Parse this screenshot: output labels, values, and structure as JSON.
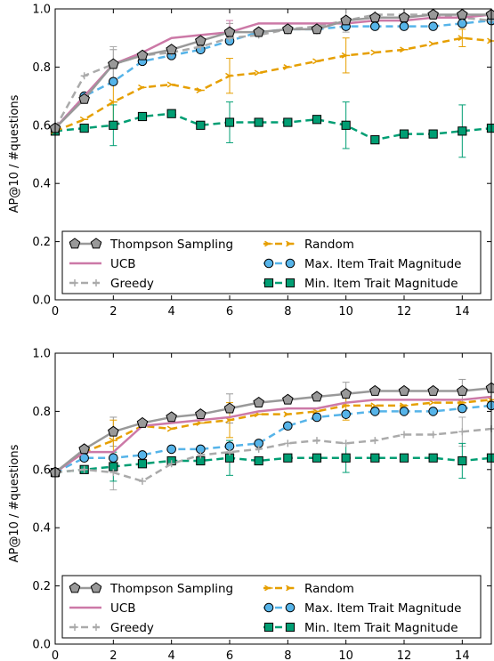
{
  "colors": {
    "thompson": "#999999",
    "ucb": "#cc79a7",
    "greedy": "#aaaaaa",
    "random": "#e69f00",
    "max": "#56b4e9",
    "min": "#009e73"
  },
  "chart_data": [
    {
      "type": "line",
      "xlabel": "",
      "ylabel": "AP@10  /  #questions",
      "xlim": [
        0,
        15
      ],
      "ylim": [
        0.0,
        1.0
      ],
      "xticks": [
        "0",
        "2",
        "4",
        "6",
        "8",
        "10",
        "12",
        "14"
      ],
      "yticks": [
        "0.0",
        "0.2",
        "0.4",
        "0.6",
        "0.8",
        "1.0"
      ],
      "legend_position": "lower-center",
      "x": [
        0,
        1,
        2,
        3,
        4,
        5,
        6,
        7,
        8,
        9,
        10,
        11,
        12,
        13,
        14,
        15
      ],
      "series": [
        {
          "name": "Thompson Sampling",
          "key": "thompson",
          "marker": "pentagon",
          "dash": "solid",
          "values": [
            0.59,
            0.69,
            0.81,
            0.84,
            0.86,
            0.89,
            0.92,
            0.92,
            0.93,
            0.93,
            0.96,
            0.97,
            0.97,
            0.98,
            0.98,
            0.98
          ]
        },
        {
          "name": "UCB",
          "key": "ucb",
          "marker": "none",
          "dash": "solid",
          "values": [
            0.59,
            0.7,
            0.81,
            0.85,
            0.9,
            0.91,
            0.92,
            0.95,
            0.95,
            0.95,
            0.95,
            0.96,
            0.96,
            0.97,
            0.97,
            0.98
          ]
        },
        {
          "name": "Greedy",
          "key": "greedy",
          "marker": "plus",
          "dash": "dash",
          "values": [
            0.59,
            0.77,
            0.81,
            0.84,
            0.85,
            0.87,
            0.9,
            0.91,
            0.93,
            0.94,
            0.96,
            0.98,
            0.98,
            0.98,
            0.97,
            0.96
          ]
        },
        {
          "name": "Random",
          "key": "random",
          "marker": "tri",
          "dash": "dash",
          "values": [
            0.58,
            0.62,
            0.68,
            0.73,
            0.74,
            0.72,
            0.77,
            0.78,
            0.8,
            0.82,
            0.84,
            0.85,
            0.86,
            0.88,
            0.9,
            0.89
          ]
        },
        {
          "name": "Max. Item Trait Magnitude",
          "key": "max",
          "marker": "circle",
          "dash": "dash",
          "values": [
            0.59,
            0.7,
            0.75,
            0.82,
            0.84,
            0.86,
            0.89,
            0.92,
            0.93,
            0.93,
            0.94,
            0.94,
            0.94,
            0.94,
            0.95,
            0.96
          ]
        },
        {
          "name": "Min. Item Trait Magnitude",
          "key": "min",
          "marker": "square",
          "dash": "dash",
          "values": [
            0.58,
            0.59,
            0.6,
            0.63,
            0.64,
            0.6,
            0.61,
            0.61,
            0.61,
            0.62,
            0.6,
            0.55,
            0.57,
            0.57,
            0.58,
            0.59
          ]
        }
      ],
      "error_bars": [
        {
          "key": "thompson",
          "x": 2,
          "y": 0.81,
          "err": 0.05
        },
        {
          "key": "greedy",
          "x": 2,
          "y": 0.81,
          "err": 0.06
        },
        {
          "key": "random",
          "x": 2,
          "y": 0.68,
          "err": 0.07
        },
        {
          "key": "min",
          "x": 2,
          "y": 0.6,
          "err": 0.07
        },
        {
          "key": "thompson",
          "x": 6,
          "y": 0.92,
          "err": 0.03
        },
        {
          "key": "ucb",
          "x": 6,
          "y": 0.92,
          "err": 0.04
        },
        {
          "key": "random",
          "x": 6,
          "y": 0.77,
          "err": 0.06
        },
        {
          "key": "min",
          "x": 6,
          "y": 0.61,
          "err": 0.07
        },
        {
          "key": "greedy",
          "x": 10,
          "y": 0.96,
          "err": 0.04
        },
        {
          "key": "random",
          "x": 10,
          "y": 0.84,
          "err": 0.06
        },
        {
          "key": "min",
          "x": 10,
          "y": 0.6,
          "err": 0.08
        },
        {
          "key": "random",
          "x": 14,
          "y": 0.9,
          "err": 0.03
        },
        {
          "key": "min",
          "x": 14,
          "y": 0.58,
          "err": 0.09
        },
        {
          "key": "greedy",
          "x": 14,
          "y": 0.97,
          "err": 0.03
        }
      ]
    },
    {
      "type": "line",
      "xlabel": "",
      "ylabel": "AP@10  /  #questions",
      "xlim": [
        0,
        15
      ],
      "ylim": [
        0.0,
        1.0
      ],
      "xticks": [
        "0",
        "2",
        "4",
        "6",
        "8",
        "10",
        "12",
        "14"
      ],
      "yticks": [
        "0.0",
        "0.2",
        "0.4",
        "0.6",
        "0.8",
        "1.0"
      ],
      "legend_position": "lower-center",
      "x": [
        0,
        1,
        2,
        3,
        4,
        5,
        6,
        7,
        8,
        9,
        10,
        11,
        12,
        13,
        14,
        15
      ],
      "series": [
        {
          "name": "Thompson Sampling",
          "key": "thompson",
          "marker": "pentagon",
          "dash": "solid",
          "values": [
            0.59,
            0.67,
            0.73,
            0.76,
            0.78,
            0.79,
            0.81,
            0.83,
            0.84,
            0.85,
            0.86,
            0.87,
            0.87,
            0.87,
            0.87,
            0.88
          ]
        },
        {
          "name": "UCB",
          "key": "ucb",
          "marker": "none",
          "dash": "solid",
          "values": [
            0.59,
            0.66,
            0.66,
            0.75,
            0.76,
            0.77,
            0.78,
            0.8,
            0.81,
            0.81,
            0.83,
            0.84,
            0.84,
            0.84,
            0.84,
            0.85
          ]
        },
        {
          "name": "Greedy",
          "key": "greedy",
          "marker": "plus",
          "dash": "dash",
          "values": [
            0.59,
            0.6,
            0.59,
            0.56,
            0.62,
            0.65,
            0.66,
            0.67,
            0.69,
            0.7,
            0.69,
            0.7,
            0.72,
            0.72,
            0.73,
            0.74
          ]
        },
        {
          "name": "Random",
          "key": "random",
          "marker": "tri",
          "dash": "dash",
          "values": [
            0.59,
            0.66,
            0.7,
            0.75,
            0.74,
            0.76,
            0.77,
            0.79,
            0.79,
            0.8,
            0.82,
            0.82,
            0.82,
            0.83,
            0.83,
            0.84
          ]
        },
        {
          "name": "Max. Item Trait Magnitude",
          "key": "max",
          "marker": "circle",
          "dash": "dash",
          "values": [
            0.59,
            0.64,
            0.64,
            0.65,
            0.67,
            0.67,
            0.68,
            0.69,
            0.75,
            0.78,
            0.79,
            0.8,
            0.8,
            0.8,
            0.81,
            0.82
          ]
        },
        {
          "name": "Min. Item Trait Magnitude",
          "key": "min",
          "marker": "square",
          "dash": "dash",
          "values": [
            0.59,
            0.6,
            0.61,
            0.62,
            0.63,
            0.63,
            0.64,
            0.63,
            0.64,
            0.64,
            0.64,
            0.64,
            0.64,
            0.64,
            0.63,
            0.64
          ]
        }
      ],
      "error_bars": [
        {
          "key": "thompson",
          "x": 2,
          "y": 0.73,
          "err": 0.05
        },
        {
          "key": "greedy",
          "x": 2,
          "y": 0.59,
          "err": 0.06
        },
        {
          "key": "random",
          "x": 2,
          "y": 0.7,
          "err": 0.07
        },
        {
          "key": "min",
          "x": 2,
          "y": 0.61,
          "err": 0.05
        },
        {
          "key": "thompson",
          "x": 6,
          "y": 0.81,
          "err": 0.05
        },
        {
          "key": "random",
          "x": 6,
          "y": 0.77,
          "err": 0.06
        },
        {
          "key": "min",
          "x": 6,
          "y": 0.64,
          "err": 0.06
        },
        {
          "key": "thompson",
          "x": 10,
          "y": 0.86,
          "err": 0.04
        },
        {
          "key": "random",
          "x": 10,
          "y": 0.82,
          "err": 0.05
        },
        {
          "key": "min",
          "x": 10,
          "y": 0.64,
          "err": 0.05
        },
        {
          "key": "thompson",
          "x": 14,
          "y": 0.87,
          "err": 0.04
        },
        {
          "key": "greedy",
          "x": 14,
          "y": 0.73,
          "err": 0.05
        },
        {
          "key": "min",
          "x": 14,
          "y": 0.63,
          "err": 0.06
        }
      ]
    }
  ]
}
